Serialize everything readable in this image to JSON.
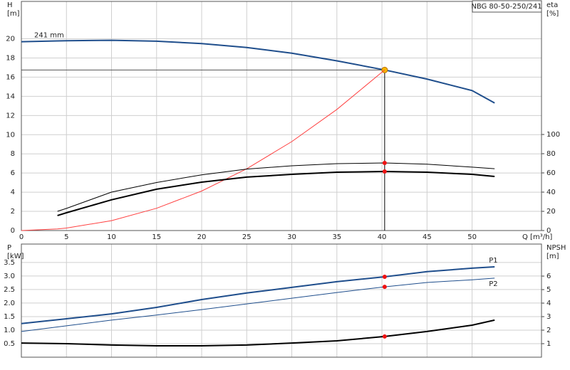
{
  "chart_data": [
    {
      "type": "line",
      "title": "NBG 80-50-250/241",
      "xlabel": "Q [m³/h]",
      "ylabel": "H",
      "yunit": "[m]",
      "y2label": "eta",
      "y2unit": "[%]",
      "x": [
        0,
        4,
        5,
        10,
        15,
        20,
        25,
        30,
        35,
        40.3,
        45,
        50,
        52.5
      ],
      "xlim": [
        0,
        57.7
      ],
      "xticks": [
        0,
        5,
        10,
        15,
        20,
        25,
        30,
        35,
        40,
        45,
        50
      ],
      "xtick_labels": true,
      "ylim": [
        0,
        23.9
      ],
      "yticks": [
        0,
        2,
        4,
        6,
        8,
        10,
        12,
        14,
        16,
        18,
        20
      ],
      "y2lim": [
        0,
        238.5
      ],
      "y2ticks": [
        0,
        20,
        40,
        60,
        80,
        100
      ],
      "grid": true,
      "duty_q": 40.3,
      "duty_lines": true,
      "series": [
        {
          "name": "241 mm",
          "label_position": "start",
          "color": "#1f4e8c",
          "width": "thick",
          "marker_color": "#f5b800",
          "values": [
            19.7,
            19.78,
            19.8,
            19.85,
            19.75,
            19.5,
            19.1,
            18.5,
            17.7,
            16.75,
            15.8,
            14.6,
            13.3
          ]
        },
        {
          "color": "#ff4040",
          "width": "thin",
          "values": [
            0,
            0.16,
            0.26,
            1.03,
            2.32,
            4.12,
            6.44,
            9.28,
            12.63,
            16.75,
            null,
            null,
            null
          ]
        },
        {
          "color": "#000000",
          "width": "thin",
          "axis": "y2",
          "marker_color": "#ee1111",
          "values": [
            null,
            20,
            23,
            40,
            50,
            58,
            64,
            67.4,
            69.6,
            70.4,
            69,
            66,
            64.4
          ]
        },
        {
          "color": "#000000",
          "width": "thick",
          "axis": "y2",
          "marker_color": "#ee1111",
          "values": [
            null,
            15.6,
            18.5,
            32,
            43,
            50.4,
            55.6,
            58.5,
            60.7,
            61.5,
            60.7,
            58.5,
            56.3
          ]
        }
      ]
    },
    {
      "type": "line",
      "ylabel": "P",
      "yunit": "[kW]",
      "y2label": "NPSH",
      "y2unit": "[m]",
      "x": [
        0,
        5,
        10,
        15,
        20,
        25,
        30,
        35,
        40.3,
        45,
        50,
        52.5
      ],
      "xlim": [
        0,
        57.7
      ],
      "xticks": [
        0,
        5,
        10,
        15,
        20,
        25,
        30,
        35,
        40,
        45,
        50
      ],
      "xtick_labels": false,
      "ylim": [
        0,
        4.18
      ],
      "yticks": [
        0.5,
        {
          "value": 1,
          "label": "1.0"
        },
        1.5,
        {
          "value": 2,
          "label": "2.0"
        },
        2.5,
        {
          "value": 3,
          "label": "3.0"
        },
        3.5
      ],
      "y2lim": [
        0,
        8.37
      ],
      "y2ticks": [
        1,
        2,
        3,
        4,
        5,
        6
      ],
      "grid": true,
      "duty_q": 40.3,
      "duty_lines": false,
      "series": [
        {
          "name": "P1",
          "label_position": "end-above",
          "color": "#1f4e8c",
          "width": "thick",
          "marker_color": "#ee1111",
          "values": [
            1.24,
            1.42,
            1.6,
            1.84,
            2.13,
            2.37,
            2.58,
            2.79,
            2.97,
            3.16,
            3.29,
            3.34
          ]
        },
        {
          "name": "P2",
          "label_position": "end-below",
          "color": "#1f4e8c",
          "width": "thin",
          "marker_color": "#ee1111",
          "values": [
            0.95,
            1.16,
            1.37,
            1.56,
            1.76,
            1.97,
            2.18,
            2.39,
            2.6,
            2.76,
            2.86,
            2.92
          ]
        },
        {
          "color": "#000000",
          "width": "thick",
          "axis": "y2",
          "marker_color": "#ee1111",
          "values": [
            1.05,
            1.0,
            0.9,
            0.84,
            0.84,
            0.9,
            1.05,
            1.21,
            1.53,
            1.9,
            2.37,
            2.74
          ]
        }
      ]
    }
  ]
}
